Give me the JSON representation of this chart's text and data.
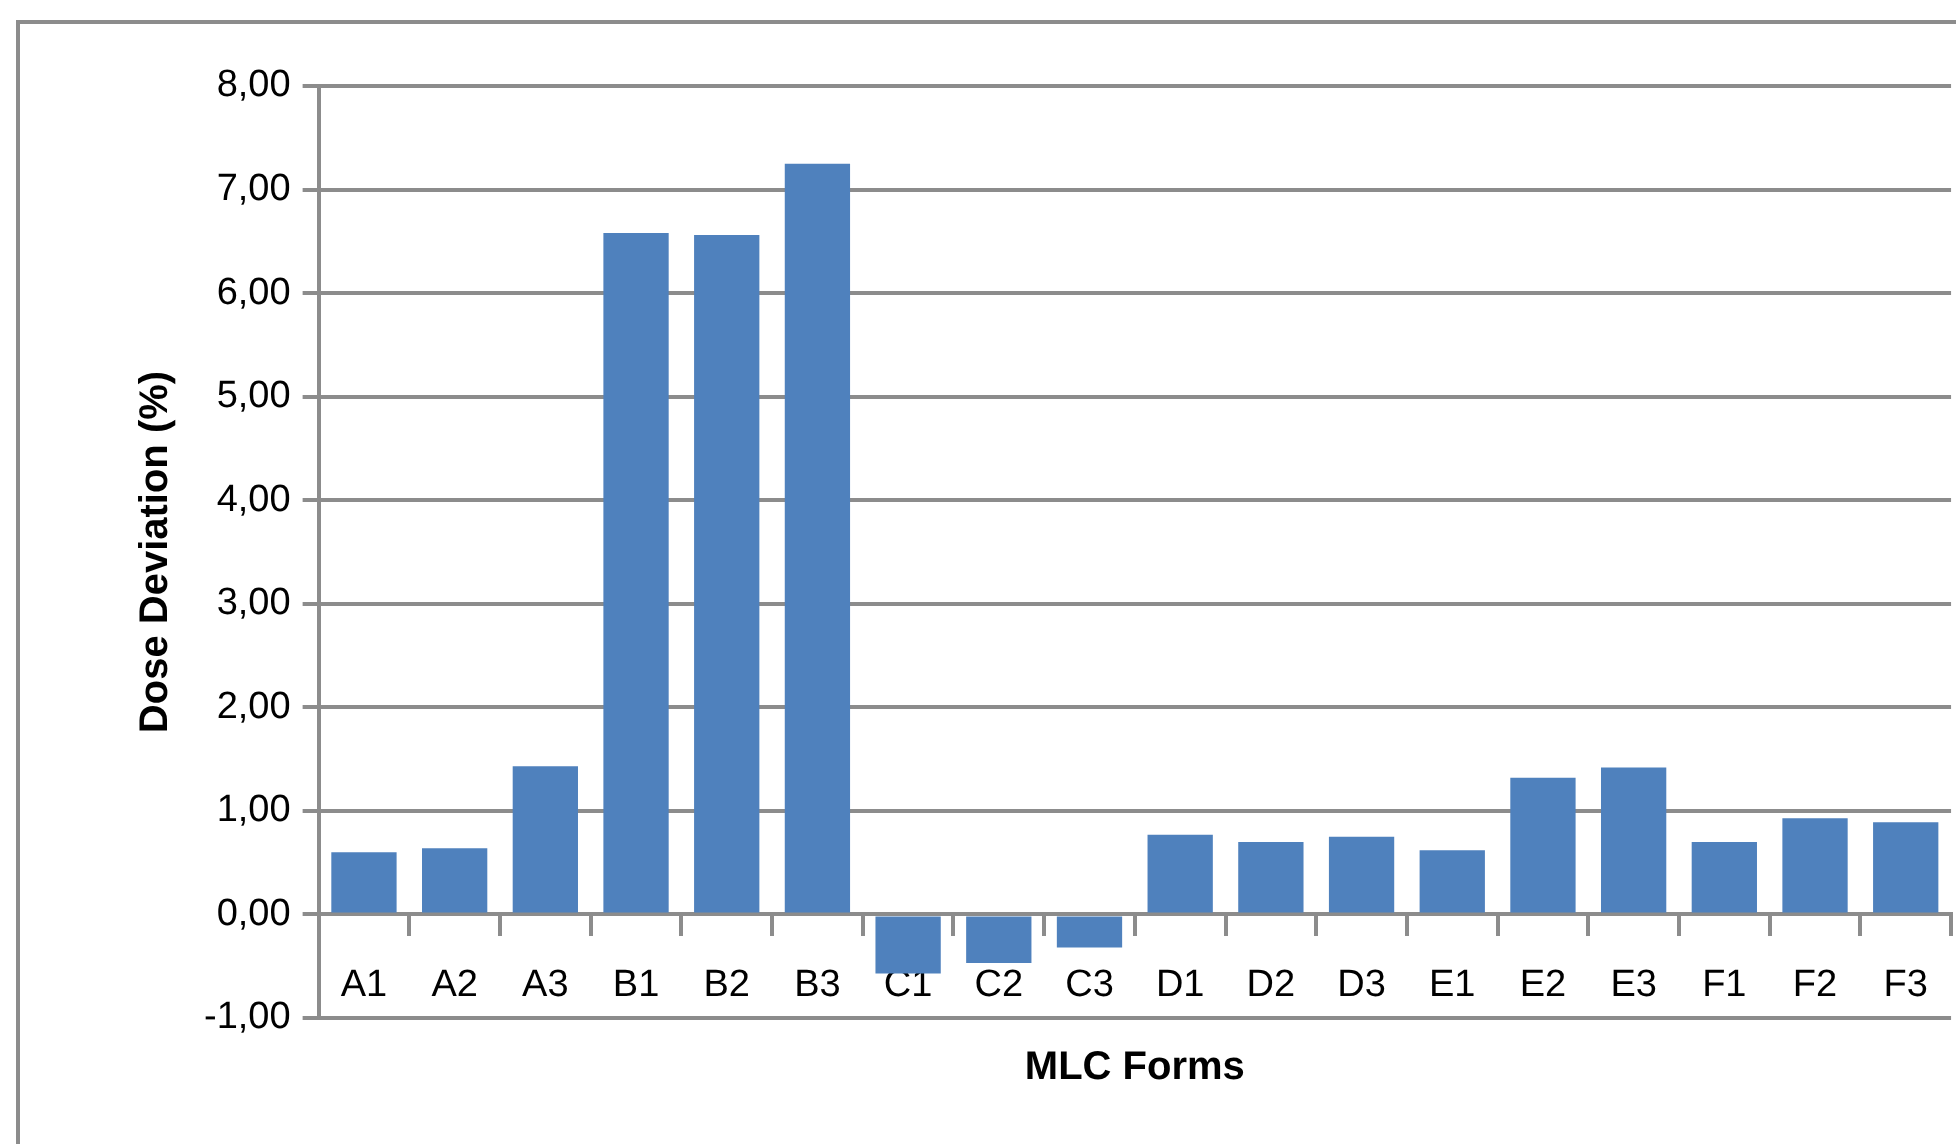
{
  "chart_data": {
    "type": "bar",
    "xlabel": "MLC Forms",
    "ylabel": "Dose Deviation (%)",
    "categories": [
      "A1",
      "A2",
      "A3",
      "B1",
      "B2",
      "B3",
      "C1",
      "C2",
      "C3",
      "D1",
      "D2",
      "D3",
      "E1",
      "E2",
      "E3",
      "F1",
      "F2",
      "F3"
    ],
    "values": [
      0.6,
      0.64,
      1.43,
      6.58,
      6.56,
      7.25,
      -0.57,
      -0.47,
      -0.32,
      0.77,
      0.7,
      0.75,
      0.62,
      1.32,
      1.42,
      0.7,
      0.93,
      0.89
    ],
    "color": "#4f81bd",
    "ylim": [
      -1,
      8
    ],
    "yticks": [
      {
        "value": -1,
        "label": "-1,00"
      },
      {
        "value": 0,
        "label": "0,00"
      },
      {
        "value": 1,
        "label": "1,00"
      },
      {
        "value": 2,
        "label": "2,00"
      },
      {
        "value": 3,
        "label": "3,00"
      },
      {
        "value": 4,
        "label": "4,00"
      },
      {
        "value": 5,
        "label": "5,00"
      },
      {
        "value": 6,
        "label": "6,00"
      },
      {
        "value": 7,
        "label": "7,00"
      },
      {
        "value": 8,
        "label": "8,00"
      }
    ],
    "grid": "y",
    "legend": false
  }
}
